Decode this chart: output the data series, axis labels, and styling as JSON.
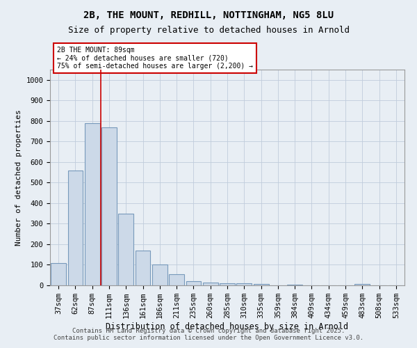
{
  "title1": "2B, THE MOUNT, REDHILL, NOTTINGHAM, NG5 8LU",
  "title2": "Size of property relative to detached houses in Arnold",
  "xlabel": "Distribution of detached houses by size in Arnold",
  "ylabel": "Number of detached properties",
  "categories": [
    "37sqm",
    "62sqm",
    "87sqm",
    "111sqm",
    "136sqm",
    "161sqm",
    "186sqm",
    "211sqm",
    "235sqm",
    "260sqm",
    "285sqm",
    "310sqm",
    "335sqm",
    "359sqm",
    "384sqm",
    "409sqm",
    "434sqm",
    "459sqm",
    "483sqm",
    "508sqm",
    "533sqm"
  ],
  "values": [
    110,
    560,
    790,
    770,
    350,
    170,
    100,
    55,
    20,
    15,
    10,
    10,
    8,
    0,
    5,
    0,
    0,
    0,
    8,
    0,
    0
  ],
  "bar_color": "#ccd9e8",
  "bar_edge_color": "#7799bb",
  "red_line_x": 2.5,
  "annotation_text_line1": "2B THE MOUNT: 89sqm",
  "annotation_text_line2": "← 24% of detached houses are smaller (720)",
  "annotation_text_line3": "75% of semi-detached houses are larger (2,200) →",
  "annotation_box_color": "#ffffff",
  "annotation_box_edge_color": "#cc0000",
  "ylim": [
    0,
    1050
  ],
  "yticks": [
    0,
    100,
    200,
    300,
    400,
    500,
    600,
    700,
    800,
    900,
    1000
  ],
  "footer1": "Contains HM Land Registry data © Crown copyright and database right 2025.",
  "footer2": "Contains public sector information licensed under the Open Government Licence v3.0.",
  "bg_color": "#e8eef4",
  "plot_bg_color": "#e8eef4",
  "grid_color": "#c0ccdc",
  "title1_fontsize": 10,
  "title2_fontsize": 9,
  "xlabel_fontsize": 8.5,
  "ylabel_fontsize": 8,
  "tick_fontsize": 7.5,
  "footer_fontsize": 6.5
}
